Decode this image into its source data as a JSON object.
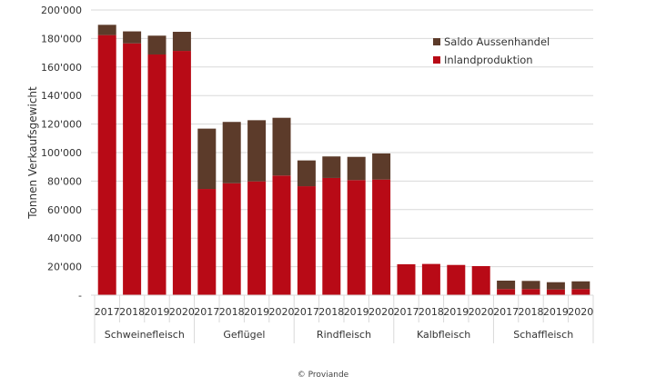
{
  "chart_data": {
    "type": "bar",
    "stacked": true,
    "title": "",
    "ylabel": "Tonnen Verkaufsgewicht",
    "xlabel": "",
    "ylim": [
      0,
      200000
    ],
    "yticks": [
      0,
      20000,
      40000,
      60000,
      80000,
      100000,
      120000,
      140000,
      160000,
      180000,
      200000
    ],
    "ytick_labels": [
      "-",
      "20'000",
      "40'000",
      "60'000",
      "80'000",
      "100'000",
      "120'000",
      "140'000",
      "160'000",
      "180'000",
      "200'000"
    ],
    "grid": true,
    "legend_position": "top-right",
    "groups": [
      "Schweinefleisch",
      "Geflügel",
      "Rindfleisch",
      "Kalbfleisch",
      "Schaffleisch"
    ],
    "years": [
      "2017",
      "2018",
      "2019",
      "2020"
    ],
    "categories": [
      "Schweinefleisch 2017",
      "Schweinefleisch 2018",
      "Schweinefleisch 2019",
      "Schweinefleisch 2020",
      "Geflügel 2017",
      "Geflügel 2018",
      "Geflügel 2019",
      "Geflügel 2020",
      "Rindfleisch 2017",
      "Rindfleisch 2018",
      "Rindfleisch 2019",
      "Rindfleisch 2020",
      "Kalbfleisch 2017",
      "Kalbfleisch 2018",
      "Kalbfleisch 2019",
      "Kalbfleisch 2020",
      "Schaffleisch 2017",
      "Schaffleisch 2018",
      "Schaffleisch 2019",
      "Schaffleisch 2020"
    ],
    "series": [
      {
        "name": "Inlandproduktion",
        "color": "#b80a16",
        "values": [
          182400,
          176600,
          168800,
          171300,
          74500,
          78500,
          79800,
          83900,
          76400,
          82200,
          80700,
          81100,
          21700,
          21900,
          21200,
          20400,
          4300,
          4300,
          4000,
          4300
        ]
      },
      {
        "name": "Saldo Aussenhandel",
        "color": "#5c3b2a",
        "values": [
          7200,
          8400,
          13200,
          13400,
          42300,
          43000,
          42900,
          40500,
          18100,
          15100,
          16300,
          18300,
          0,
          0,
          0,
          0,
          5900,
          5700,
          5100,
          5400
        ]
      }
    ],
    "legend": [
      "Saldo Aussenhandel",
      "Inlandproduktion"
    ]
  },
  "footer": {
    "source": "© Proviande"
  }
}
